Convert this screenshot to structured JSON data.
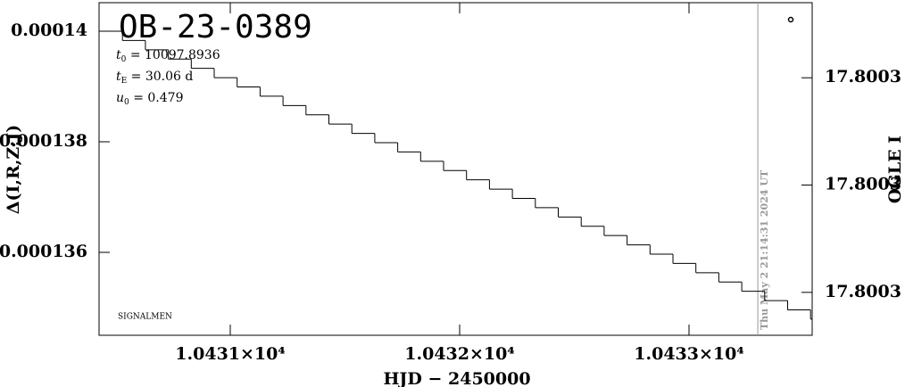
{
  "chart_data": {
    "type": "step",
    "title": "OB-23-0389",
    "parameters": [
      {
        "symbol": "t",
        "subscript": "0",
        "text": " = 10097.8936"
      },
      {
        "symbol": "t",
        "subscript": "E",
        "text": " = 30.06  d"
      },
      {
        "symbol": "u",
        "subscript": "0",
        "text": " = 0.479"
      }
    ],
    "note": "SIGNALMEN",
    "timestamp": "Thu May  2 21:14:31 2024 UT",
    "timestamp_x": 10433.3,
    "x_label": "HJD − 2450000",
    "y_label": "Δ(I,R,Z;J)",
    "y2_label": "OGLE I",
    "xlim": [
      10430.428,
      10433.537
    ],
    "xticks": [
      {
        "value": 10431,
        "label": "1.0431×10⁴"
      },
      {
        "value": 10432,
        "label": "1.0432×10⁴"
      },
      {
        "value": 10433,
        "label": "1.0433×10⁴"
      }
    ],
    "ylim": [
      0.0001345,
      0.000140516
    ],
    "yticks": [
      0.000136,
      0.000138,
      0.00014
    ],
    "y2lim": [
      17.800308,
      17.800246
    ],
    "y2ticks": [
      {
        "value": 17.8003,
        "label": "17.8003"
      },
      {
        "value": 17.80028,
        "label": "17.8003"
      },
      {
        "value": 17.80026,
        "label": "17.8003"
      }
    ],
    "color": "#000000",
    "x": [
      10430.43,
      10430.53,
      10430.63,
      10430.73,
      10430.83,
      10430.93,
      10431.03,
      10431.13,
      10431.23,
      10431.33,
      10431.43,
      10431.53,
      10431.63,
      10431.73,
      10431.83,
      10431.93,
      10432.03,
      10432.13,
      10432.23,
      10432.33,
      10432.43,
      10432.53,
      10432.63,
      10432.73,
      10432.83,
      10432.93,
      10433.03,
      10433.13,
      10433.23,
      10433.33,
      10433.43,
      10433.53
    ],
    "values": [
      0.00014,
      0.000139832,
      0.000139664,
      0.000139496,
      0.000139328,
      0.00013916,
      0.000138992,
      0.000138824,
      0.000138656,
      0.000138488,
      0.00013832,
      0.000138152,
      0.000137984,
      0.000137816,
      0.000137648,
      0.00013748,
      0.000137312,
      0.000137144,
      0.000136976,
      0.000136808,
      0.00013664,
      0.000136472,
      0.000136304,
      0.000136136,
      0.000135968,
      0.0001358,
      0.000135632,
      0.000135464,
      0.000135296,
      0.000135128,
      0.00013496,
      0.000134792
    ]
  }
}
